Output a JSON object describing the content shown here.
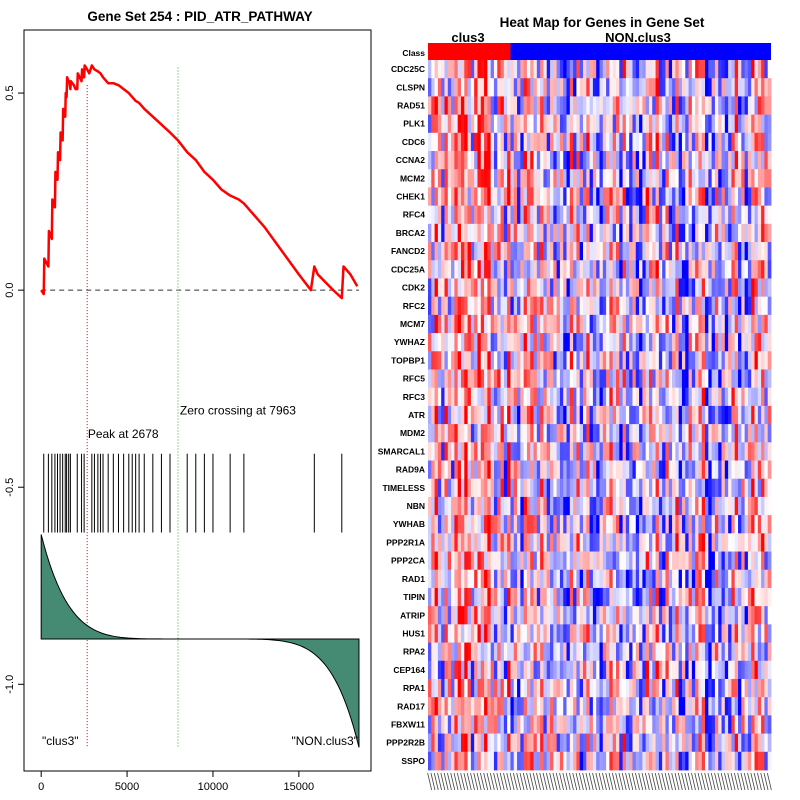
{
  "chart_data": [
    {
      "type": "line",
      "title": "Gene Set  254 : PID_ATR_PATHWAY",
      "xlabel": "",
      "ylabel": "",
      "xlim": [
        -1000,
        19200
      ],
      "ylim": [
        -1.22,
        0.66
      ],
      "x_ticks": [
        0,
        5000,
        10000,
        15000
      ],
      "x_tick_labels": [
        "0",
        "5000",
        "10000",
        "15000"
      ],
      "y_ticks": [
        0.5,
        0.0,
        -0.5,
        -1.0
      ],
      "y_tick_labels": [
        "0.5",
        "0.0",
        "-0.5",
        "-1.0"
      ],
      "es_curve": {
        "name": "Running enrichment score",
        "color": "#ff0000",
        "x": [
          0,
          150,
          180,
          420,
          450,
          620,
          650,
          800,
          830,
          950,
          980,
          1100,
          1130,
          1250,
          1280,
          1400,
          1430,
          1480,
          1510,
          1600,
          1630,
          1700,
          1730,
          1900,
          2000,
          2100,
          2130,
          2350,
          2380,
          2500,
          2530,
          2678,
          2800,
          2950,
          3100,
          3300,
          3450,
          3600,
          3900,
          4200,
          4500,
          4800,
          5100,
          5300,
          5500,
          5700,
          6000,
          6500,
          7000,
          7500,
          7963,
          8500,
          9000,
          9500,
          10000,
          10500,
          11000,
          11500,
          11800,
          12200,
          13000,
          14000,
          15000,
          15700,
          15900,
          16100,
          17000,
          17500,
          17600,
          18000,
          18400
        ],
        "y": [
          0.0,
          -0.01,
          0.08,
          0.06,
          0.15,
          0.13,
          0.23,
          0.21,
          0.3,
          0.28,
          0.35,
          0.33,
          0.4,
          0.38,
          0.46,
          0.44,
          0.5,
          0.49,
          0.54,
          0.53,
          0.53,
          0.51,
          0.53,
          0.52,
          0.51,
          0.51,
          0.55,
          0.53,
          0.56,
          0.54,
          0.57,
          0.56,
          0.55,
          0.57,
          0.56,
          0.555,
          0.55,
          0.54,
          0.525,
          0.525,
          0.52,
          0.51,
          0.5,
          0.49,
          0.48,
          0.475,
          0.46,
          0.44,
          0.42,
          0.4,
          0.38,
          0.35,
          0.33,
          0.3,
          0.28,
          0.255,
          0.24,
          0.23,
          0.22,
          0.2,
          0.16,
          0.1,
          0.04,
          0.0,
          0.06,
          0.04,
          0.0,
          -0.02,
          0.06,
          0.04,
          0.01
        ]
      },
      "baseline_y": 0.0,
      "peak": {
        "x": 2678,
        "label": "Peak at 2678",
        "line_color": "#cc0000"
      },
      "zero_crossing": {
        "x": 7963,
        "label": "Zero crossing at 7963",
        "line_color": "#33aa33"
      },
      "hit_positions": [
        150,
        420,
        620,
        800,
        950,
        1100,
        1250,
        1400,
        1480,
        1600,
        1700,
        2100,
        2350,
        2500,
        2950,
        3100,
        3300,
        3450,
        3600,
        3900,
        4200,
        4500,
        4800,
        5100,
        5300,
        5500,
        5700,
        6000,
        6500,
        7000,
        7500,
        8500,
        9000,
        9500,
        10000,
        11000,
        11800,
        15900,
        17500
      ],
      "hit_band_y": [
        -0.415,
        -0.615
      ],
      "ranked_metric": {
        "fill_color": "#458B74",
        "baseline_y": -0.885,
        "start_y": -0.62,
        "end_y": -1.16,
        "max_x": 18500
      },
      "group_labels": {
        "left": "\"clus3\"",
        "right": "\"NON.clus3\""
      }
    },
    {
      "type": "heatmap",
      "title": "Heat Map for Genes in Gene Set",
      "class_row_label": "Class",
      "groups": [
        {
          "name": "clus3",
          "color": "#ff0000",
          "columns": 25
        },
        {
          "name": "NON.clus3",
          "color": "#0000ff",
          "columns": 79
        }
      ],
      "genes": [
        "CDC25C",
        "CLSPN",
        "RAD51",
        "PLK1",
        "CDC6",
        "CCNA2",
        "MCM2",
        "CHEK1",
        "RFC4",
        "BRCA2",
        "FANCD2",
        "CDC25A",
        "CDK2",
        "RFC2",
        "MCM7",
        "YWHAZ",
        "TOPBP1",
        "RFC5",
        "RFC3",
        "ATR",
        "MDM2",
        "SMARCAL1",
        "RAD9A",
        "TIMELESS",
        "NBN",
        "YWHAB",
        "PPP2R1A",
        "PPP2CA",
        "RAD1",
        "TIPIN",
        "ATRIP",
        "HUS1",
        "RPA2",
        "CEP164",
        "RPA1",
        "RAD17",
        "FBXW11",
        "PPP2R2B",
        "SSPO"
      ],
      "color_scale": {
        "low": "#0000ff",
        "mid": "#ffffff",
        "high": "#ff0000"
      }
    }
  ]
}
